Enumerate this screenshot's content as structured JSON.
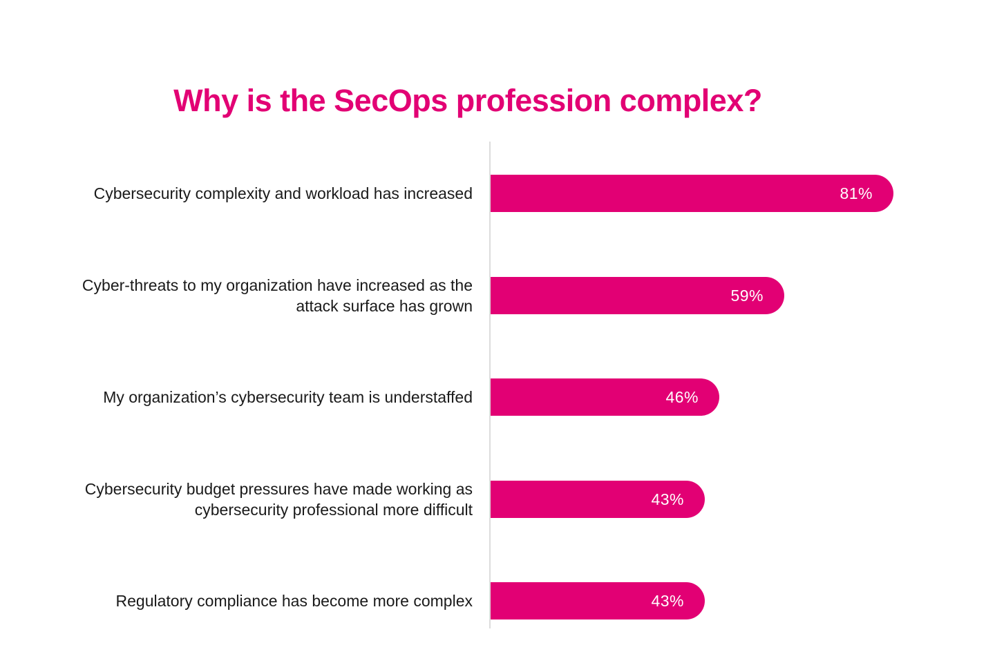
{
  "title": {
    "text": "Why is the SecOps profession complex?",
    "color": "#e20074"
  },
  "chart_data": {
    "type": "bar",
    "orientation": "horizontal",
    "title": "Why is the SecOps profession complex?",
    "categories": [
      "Cybersecurity complexity and workload has increased",
      "Cyber-threats to my organization have increased as the\nattack surface has grown",
      "My organization’s cybersecurity team is understaffed",
      "Cybersecurity budget pressures have made working as\ncybersecurity professional more difficult",
      "Regulatory compliance has become more complex"
    ],
    "values": [
      81,
      59,
      46,
      43,
      43
    ],
    "value_labels": [
      "81%",
      "59%",
      "46%",
      "43%",
      "43%"
    ],
    "xlim": [
      0,
      100
    ],
    "grid": "off",
    "legend": "none",
    "axis_line": "vertical-baseline-left",
    "bar_color": "#e20074",
    "value_label_color": "#ffffff",
    "category_label_color": "#1a1a1a",
    "axis_line_color": "#dcdcdc"
  }
}
